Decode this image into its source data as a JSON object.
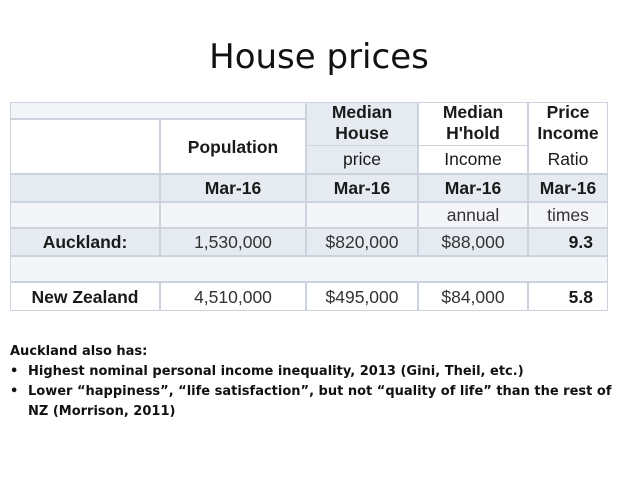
{
  "title": "House prices",
  "table": {
    "headers": {
      "population": "Population",
      "median_house": [
        "Median",
        "House",
        "price"
      ],
      "median_hhold": [
        "Median",
        "H'hold",
        "Income"
      ],
      "price_income": [
        "Price",
        "Income",
        "Ratio"
      ]
    },
    "dates": [
      "Mar-16",
      "Mar-16",
      "Mar-16",
      "Mar-16"
    ],
    "units": [
      "annual",
      "times"
    ],
    "rows": [
      {
        "label": "Auckland:",
        "population": "1,530,000",
        "house": "$820,000",
        "income": "$88,000",
        "ratio": "9.3"
      },
      {
        "label": "New Zealand",
        "population": "4,510,000",
        "house": "$495,000",
        "income": "$84,000",
        "ratio": "5.8"
      }
    ]
  },
  "notes": {
    "heading": "Auckland also has:",
    "bullets": [
      "Highest nominal personal income inequality, 2013  (Gini, Theil, etc.)",
      "Lower “happiness”, “life satisfaction”, but not “quality of life” than the rest of NZ (Morrison, 2011)"
    ]
  }
}
